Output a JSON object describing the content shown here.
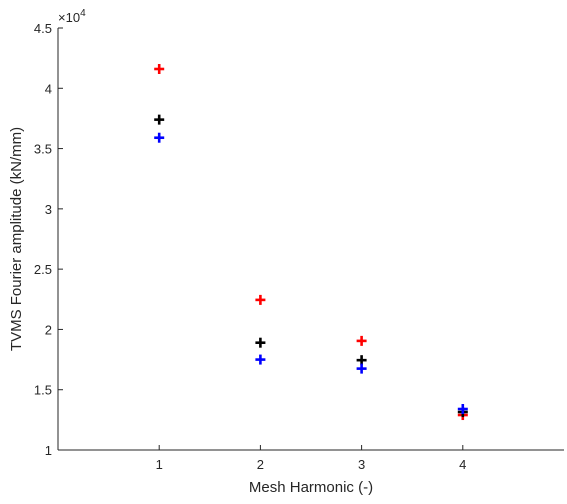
{
  "chart_data": {
    "type": "scatter",
    "title": "",
    "xlabel": "Mesh Harmonic (-)",
    "ylabel": "TVMS Fourier amplitude (kN/mm)",
    "xlim": [
      0,
      5
    ],
    "ylim": [
      1,
      4.5
    ],
    "x_ticks": [
      "1",
      "2",
      "3",
      "4"
    ],
    "y_ticks": [
      "1",
      "1.5",
      "2",
      "2.5",
      "3",
      "3.5",
      "4",
      "4.5"
    ],
    "y_exponent_base": "×10",
    "y_exponent_power": "4",
    "marker": "plus",
    "grid": false,
    "legend": "none",
    "series": [
      {
        "color": "#ff0000",
        "x": [
          1,
          2,
          3,
          4
        ],
        "y": [
          4.16,
          2.245,
          1.905,
          1.29
        ]
      },
      {
        "color": "#000000",
        "x": [
          1,
          2,
          3,
          4
        ],
        "y": [
          3.74,
          1.89,
          1.745,
          1.315
        ]
      },
      {
        "color": "#0000ff",
        "x": [
          1,
          2,
          3,
          4
        ],
        "y": [
          3.59,
          1.75,
          1.675,
          1.34
        ]
      }
    ]
  }
}
